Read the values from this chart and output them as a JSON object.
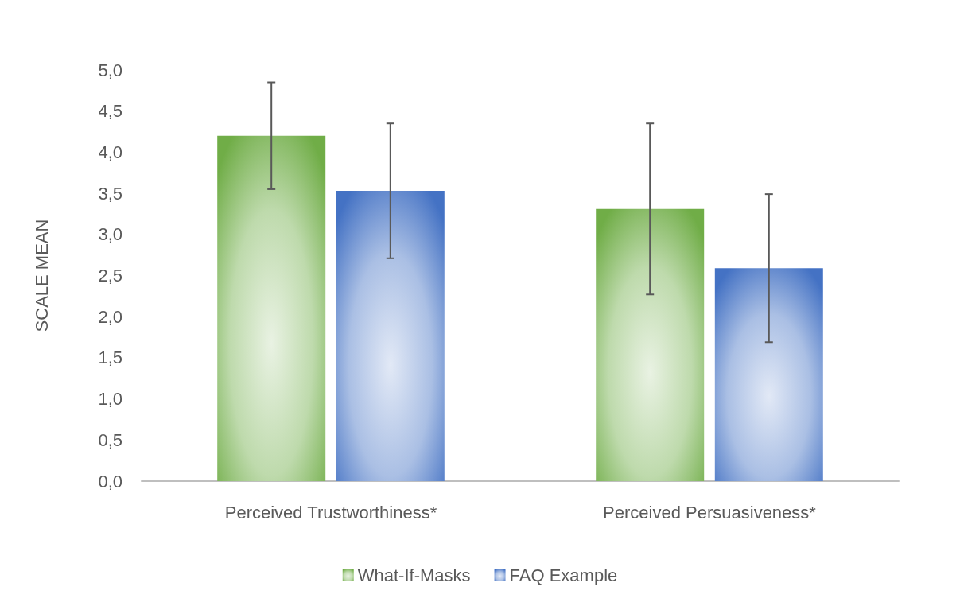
{
  "chart_data": {
    "type": "bar",
    "ylabel": "SCALE MEAN",
    "categories": [
      "Perceived Trustworthiness*",
      "Perceived Persuasiveness*"
    ],
    "series": [
      {
        "name": "What-If-Masks",
        "color": "#70ad47",
        "values": [
          4.2,
          3.31
        ],
        "errors": [
          0.65,
          1.04
        ]
      },
      {
        "name": "FAQ Example",
        "color": "#4472c4",
        "values": [
          3.53,
          2.59
        ],
        "errors": [
          0.82,
          0.9
        ]
      }
    ],
    "ylim": [
      0,
      5
    ],
    "yticks": [
      {
        "value": 0,
        "label": "0,0"
      },
      {
        "value": 0.5,
        "label": "0,5"
      },
      {
        "value": 1,
        "label": "1,0"
      },
      {
        "value": 1.5,
        "label": "1,5"
      },
      {
        "value": 2,
        "label": "2,0"
      },
      {
        "value": 2.5,
        "label": "2,5"
      },
      {
        "value": 3,
        "label": "3,0"
      },
      {
        "value": 3.5,
        "label": "3,5"
      },
      {
        "value": 4,
        "label": "4,0"
      },
      {
        "value": 4.5,
        "label": "4,5"
      },
      {
        "value": 5,
        "label": "5,0"
      }
    ],
    "grid": false,
    "legend": "bottom"
  }
}
